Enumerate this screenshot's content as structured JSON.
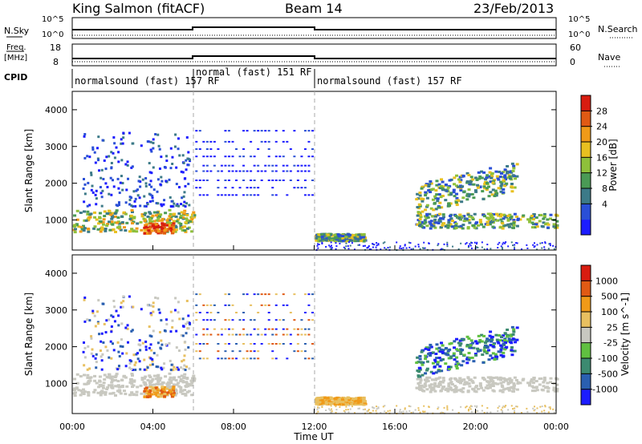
{
  "header": {
    "station": "King Salmon (fitACF)",
    "beam": "Beam 14",
    "date": "23/Feb/2013"
  },
  "status_panels": {
    "nsky_label": "N.Sky",
    "nsky_ticks": [
      "10^5",
      "10^0"
    ],
    "nsearch_label": "N.Search",
    "nsearch_ticks": [
      "10^5",
      "10^0"
    ],
    "freq_label": "Freq.",
    "freq_unit": "[MHz]",
    "freq_ticks": [
      "18",
      "8"
    ],
    "nave_label": "Nave",
    "nave_ticks": [
      "60",
      "0"
    ],
    "cpid_label": "CPID",
    "cpid_segments": [
      {
        "label": "normalsound (fast) 157 RF",
        "start_h": 0,
        "end_h": 6
      },
      {
        "label": "normal (fast) 151 RF",
        "start_h": 6,
        "end_h": 12
      },
      {
        "label": "normalsound (fast) 157 RF",
        "start_h": 12,
        "end_h": 24
      }
    ]
  },
  "chart_data": [
    {
      "type": "heatmap",
      "title": "",
      "ylabel": "Slant Range [km]",
      "xlabel": "",
      "ylim": [
        180,
        4500
      ],
      "xlim": [
        0,
        24
      ],
      "yticks": [
        "1000",
        "2000",
        "3000",
        "4000"
      ],
      "colorbar": {
        "label": "Power [dB]",
        "ticks": [
          "28",
          "24",
          "20",
          "16",
          "12",
          "8",
          "4"
        ],
        "range": [
          0,
          30
        ],
        "colors": [
          "#1c1cff",
          "#2a4fd6",
          "#3c7a88",
          "#4a9a55",
          "#8ec03a",
          "#e8c020",
          "#f09a18",
          "#e05a14",
          "#d81c10"
        ]
      },
      "echo_regions": [
        {
          "name": "ionospheric-band-morning",
          "t_start": 0.0,
          "t_end": 6.0,
          "range_min": 700,
          "range_max": 1300,
          "level": "high"
        },
        {
          "name": "peak-echo",
          "t_start": 3.5,
          "t_end": 5.0,
          "range_min": 650,
          "range_max": 950,
          "level": "peak"
        },
        {
          "name": "sporadic-scatter",
          "t_start": 0.5,
          "t_end": 5.8,
          "range_min": 1400,
          "range_max": 3400,
          "level": "low"
        },
        {
          "name": "ground-scatter-low",
          "t_start": 12.0,
          "t_end": 14.5,
          "range_min": 450,
          "range_max": 650,
          "level": "mid"
        },
        {
          "name": "evening-band",
          "t_start": 17.0,
          "t_end": 24.0,
          "range_min": 800,
          "range_max": 1200,
          "level": "mid"
        },
        {
          "name": "evening-upper",
          "t_start": 17.0,
          "t_end": 22.0,
          "range_min": 1500,
          "range_max": 2300,
          "level": "mid"
        }
      ]
    },
    {
      "type": "heatmap",
      "title": "",
      "ylabel": "Slant Range [km]",
      "xlabel": "Time UT",
      "ylim": [
        180,
        4500
      ],
      "xlim": [
        0,
        24
      ],
      "xticks": [
        "00:00",
        "04:00",
        "08:00",
        "12:00",
        "16:00",
        "20:00",
        "00:00"
      ],
      "yticks": [
        "1000",
        "2000",
        "3000",
        "4000"
      ],
      "colorbar": {
        "label": "Velocity [m s^-1]",
        "ticks": [
          "1000",
          "500",
          "100",
          "25",
          "-25",
          "-100",
          "-500",
          "-1000"
        ],
        "colors": [
          "#1c1cff",
          "#2a5fb0",
          "#3c8a70",
          "#60c040",
          "#c8c8c0",
          "#e8c060",
          "#f09a18",
          "#e05a14",
          "#d81c10"
        ]
      }
    }
  ]
}
